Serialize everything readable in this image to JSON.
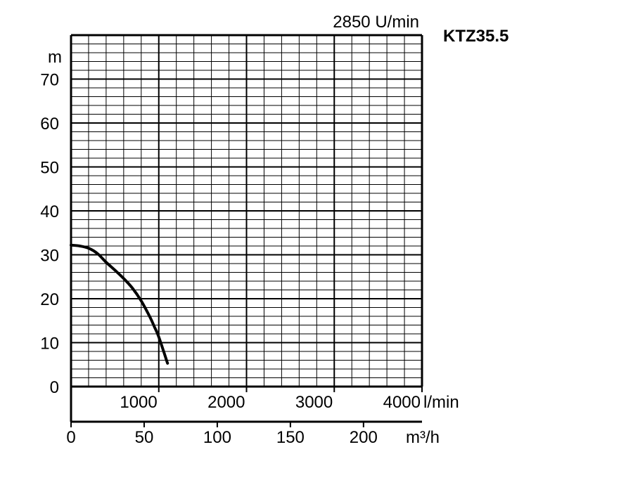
{
  "chart_data": {
    "type": "line",
    "model": "KTZ35.5",
    "speed_label": "2850 U/min",
    "ylabel": "m",
    "ylim": [
      0,
      80
    ],
    "y_ticks": [
      0,
      10,
      20,
      30,
      40,
      50,
      60,
      70
    ],
    "xlim": [
      0,
      4000
    ],
    "x_ticks_lmin": [
      1000,
      2000,
      3000,
      4000
    ],
    "x_unit_lmin": "l/min",
    "x_ticks_m3h": [
      0,
      50,
      100,
      150,
      200
    ],
    "x_unit_m3h": "m³/h",
    "series": [
      {
        "x": [
          0,
          100,
          200,
          300,
          400,
          500,
          600,
          700,
          800,
          900,
          950,
          1000,
          1100
        ],
        "y": [
          32.2,
          32.0,
          31.5,
          30.3,
          28.3,
          26.5,
          24.6,
          22.4,
          19.5,
          15.8,
          13.6,
          11.3,
          5.3
        ]
      }
    ],
    "grid": true
  }
}
